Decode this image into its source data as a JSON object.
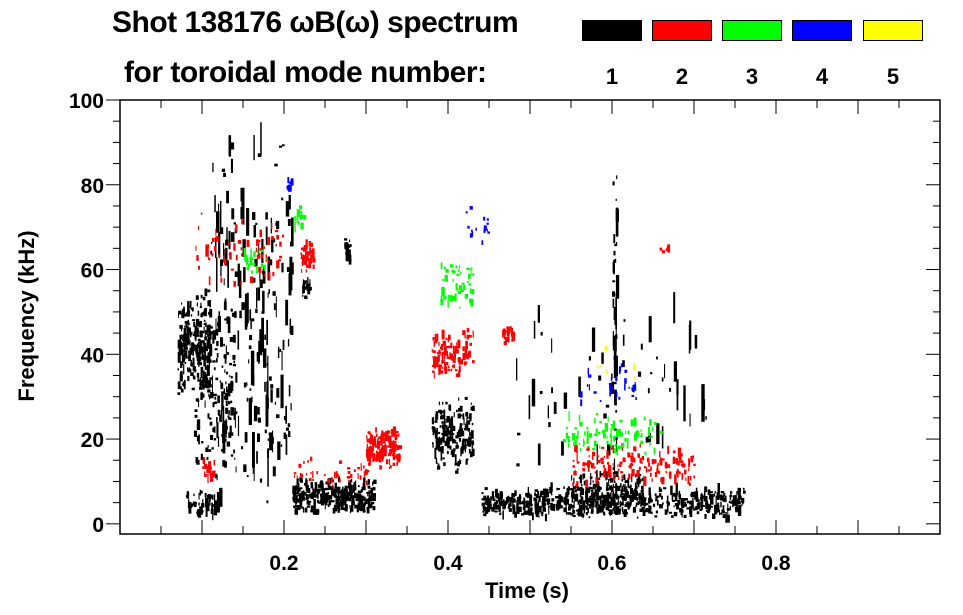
{
  "chart_data": {
    "type": "heatmap",
    "title_line1": "Shot 138176 ωB(ω) spectrum",
    "title_line2": "for toroidal mode number:",
    "xlabel": "Time (s)",
    "ylabel": "Frequency (kHz)",
    "xlim": [
      0,
      1.0
    ],
    "ylim": [
      -2.4,
      100
    ],
    "xticks": [
      0.2,
      0.4,
      0.6,
      0.8
    ],
    "xtick_labels": [
      "0.2",
      "0.4",
      "0.6",
      "0.8"
    ],
    "yticks": [
      0,
      20,
      40,
      60,
      80,
      100
    ],
    "ytick_labels": [
      "0",
      "20",
      "40",
      "60",
      "80",
      "100"
    ],
    "legend": [
      {
        "mode": "1",
        "color": "#000000"
      },
      {
        "mode": "2",
        "color": "#ff0000"
      },
      {
        "mode": "3",
        "color": "#00ff00"
      },
      {
        "mode": "4",
        "color": "#0000ff"
      },
      {
        "mode": "5",
        "color": "#ffff00"
      }
    ],
    "regions": [
      {
        "mode": 1,
        "t": [
          0.07,
          0.11
        ],
        "f": [
          28,
          56
        ],
        "n": 260
      },
      {
        "mode": 1,
        "t": [
          0.09,
          0.14
        ],
        "f": [
          10,
          50
        ],
        "n": 120
      },
      {
        "mode": 1,
        "t": [
          0.08,
          0.12
        ],
        "f": [
          1,
          8
        ],
        "n": 60
      },
      {
        "mode": 1,
        "t": [
          0.11,
          0.21
        ],
        "f": [
          0,
          95
        ],
        "n": 220
      },
      {
        "mode": 1,
        "t": [
          0.21,
          0.31
        ],
        "f": [
          2,
          11
        ],
        "n": 320
      },
      {
        "mode": 1,
        "t": [
          0.222,
          0.232
        ],
        "f": [
          53,
          58
        ],
        "n": 25
      },
      {
        "mode": 1,
        "t": [
          0.272,
          0.28
        ],
        "f": [
          61,
          69
        ],
        "n": 25
      },
      {
        "mode": 1,
        "t": [
          0.38,
          0.43
        ],
        "f": [
          12,
          30
        ],
        "n": 200
      },
      {
        "mode": 1,
        "t": [
          0.44,
          0.76
        ],
        "f": [
          1,
          9
        ],
        "n": 620
      },
      {
        "mode": 1,
        "t": [
          0.55,
          0.64
        ],
        "f": [
          4,
          13
        ],
        "n": 150
      },
      {
        "mode": 1,
        "t": [
          0.6,
          0.605
        ],
        "f": [
          5,
          88
        ],
        "n": 40
      },
      {
        "mode": 1,
        "t": [
          0.48,
          0.72
        ],
        "f": [
          10,
          55
        ],
        "n": 60
      },
      {
        "mode": 2,
        "t": [
          0.3,
          0.34
        ],
        "f": [
          13,
          23
        ],
        "n": 160
      },
      {
        "mode": 2,
        "t": [
          0.21,
          0.3
        ],
        "f": [
          8,
          16
        ],
        "n": 40
      },
      {
        "mode": 2,
        "t": [
          0.38,
          0.43
        ],
        "f": [
          34,
          46
        ],
        "n": 110
      },
      {
        "mode": 2,
        "t": [
          0.465,
          0.48
        ],
        "f": [
          42,
          48
        ],
        "n": 30
      },
      {
        "mode": 2,
        "t": [
          0.22,
          0.235
        ],
        "f": [
          59,
          67
        ],
        "n": 45
      },
      {
        "mode": 2,
        "t": [
          0.09,
          0.2
        ],
        "f": [
          55,
          75
        ],
        "n": 60
      },
      {
        "mode": 2,
        "t": [
          0.55,
          0.7
        ],
        "f": [
          8,
          20
        ],
        "n": 140
      },
      {
        "mode": 2,
        "t": [
          0.1,
          0.115
        ],
        "f": [
          10,
          16
        ],
        "n": 20
      },
      {
        "mode": 2,
        "t": [
          0.655,
          0.67
        ],
        "f": [
          64,
          66
        ],
        "n": 6
      },
      {
        "mode": 3,
        "t": [
          0.212,
          0.225
        ],
        "f": [
          69,
          75
        ],
        "n": 20
      },
      {
        "mode": 3,
        "t": [
          0.39,
          0.43
        ],
        "f": [
          50,
          62
        ],
        "n": 50
      },
      {
        "mode": 3,
        "t": [
          0.54,
          0.66
        ],
        "f": [
          16,
          26
        ],
        "n": 90
      },
      {
        "mode": 3,
        "t": [
          0.15,
          0.18
        ],
        "f": [
          59,
          66
        ],
        "n": 25
      },
      {
        "mode": 4,
        "t": [
          0.2,
          0.21
        ],
        "f": [
          78,
          82
        ],
        "n": 8
      },
      {
        "mode": 4,
        "t": [
          0.42,
          0.45
        ],
        "f": [
          65,
          75
        ],
        "n": 15
      },
      {
        "mode": 4,
        "t": [
          0.56,
          0.63
        ],
        "f": [
          28,
          38
        ],
        "n": 30
      },
      {
        "mode": 5,
        "t": [
          0.57,
          0.64
        ],
        "f": [
          32,
          42
        ],
        "n": 6
      }
    ]
  }
}
